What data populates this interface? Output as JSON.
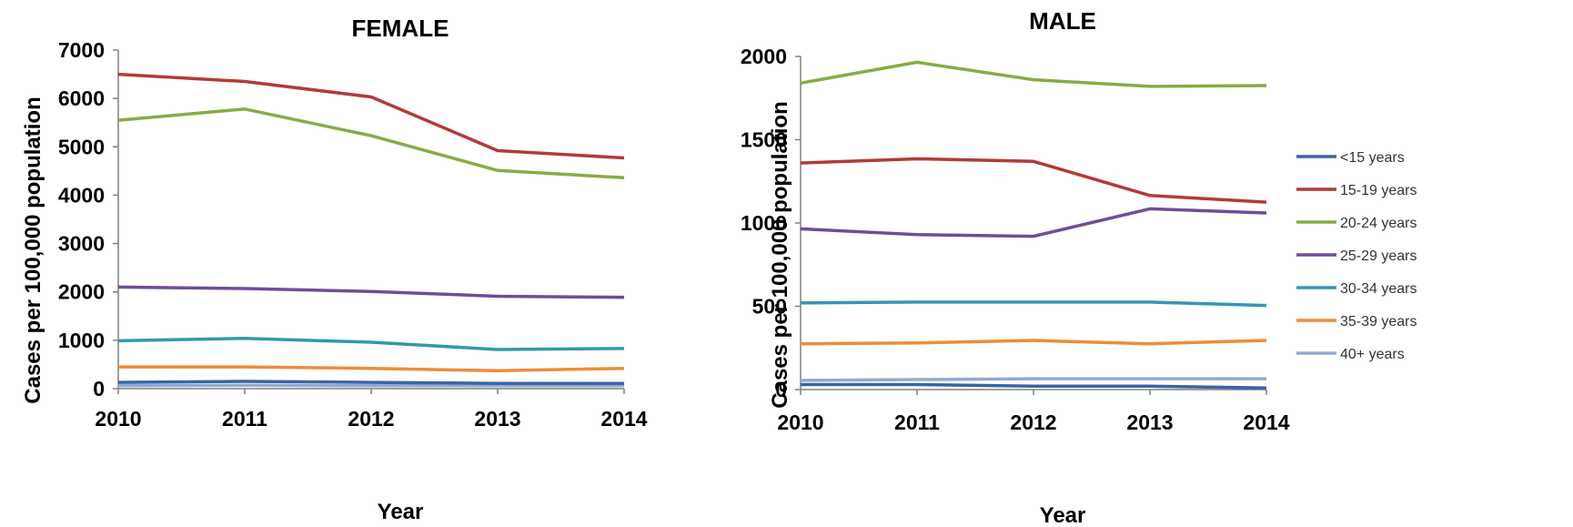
{
  "chart_data": [
    {
      "type": "line",
      "title": "FEMALE",
      "xlabel": "Year",
      "ylabel": "Cases per 100,000 population",
      "x": [
        "2010",
        "2011",
        "2012",
        "2013",
        "2014"
      ],
      "ylim": [
        0,
        7000
      ],
      "yticks": [
        "0",
        "1000",
        "2000",
        "3000",
        "4000",
        "5000",
        "6000",
        "7000"
      ],
      "grid": false,
      "series": [
        {
          "name": "<15 years",
          "color": "#3A65A4",
          "values": [
            130,
            150,
            130,
            110,
            110
          ]
        },
        {
          "name": "15-19 years",
          "color": "#B33A37",
          "values": [
            6500,
            6350,
            6030,
            4920,
            4770
          ]
        },
        {
          "name": "20-24 years",
          "color": "#89AB44",
          "values": [
            5550,
            5780,
            5230,
            4510,
            4360
          ]
        },
        {
          "name": "25-29 years",
          "color": "#6E4E96",
          "values": [
            2100,
            2070,
            2010,
            1910,
            1890
          ]
        },
        {
          "name": "30-34 years",
          "color": "#3596AE",
          "values": [
            990,
            1040,
            960,
            810,
            830
          ]
        },
        {
          "name": "35-39 years",
          "color": "#EE8C3A",
          "values": [
            450,
            450,
            420,
            370,
            420
          ]
        },
        {
          "name": "40+ years",
          "color": "#93A9D0",
          "values": [
            60,
            70,
            60,
            60,
            60
          ]
        }
      ]
    },
    {
      "type": "line",
      "title": "MALE",
      "xlabel": "Year",
      "ylabel": "Cases per 100,000 population",
      "x": [
        "2010",
        "2011",
        "2012",
        "2013",
        "2014"
      ],
      "ylim": [
        0,
        2000
      ],
      "yticks": [
        "0",
        "500",
        "1000",
        "1500",
        "2000"
      ],
      "grid": false,
      "legend_position": "right",
      "series": [
        {
          "name": "<15 years",
          "color": "#3A65A4",
          "values": [
            30,
            30,
            20,
            20,
            10
          ]
        },
        {
          "name": "15-19 years",
          "color": "#B33A37",
          "values": [
            1360,
            1385,
            1370,
            1165,
            1125
          ]
        },
        {
          "name": "20-24 years",
          "color": "#89AB44",
          "values": [
            1840,
            1965,
            1860,
            1820,
            1825
          ]
        },
        {
          "name": "25-29 years",
          "color": "#6E4E96",
          "values": [
            965,
            930,
            920,
            1085,
            1060
          ]
        },
        {
          "name": "30-34 years",
          "color": "#3596AE",
          "values": [
            520,
            525,
            525,
            525,
            505
          ]
        },
        {
          "name": "35-39 years",
          "color": "#EE8C3A",
          "values": [
            275,
            280,
            295,
            275,
            295
          ]
        },
        {
          "name": "40+ years",
          "color": "#93A9D0",
          "values": [
            55,
            60,
            65,
            65,
            65
          ]
        }
      ]
    }
  ]
}
